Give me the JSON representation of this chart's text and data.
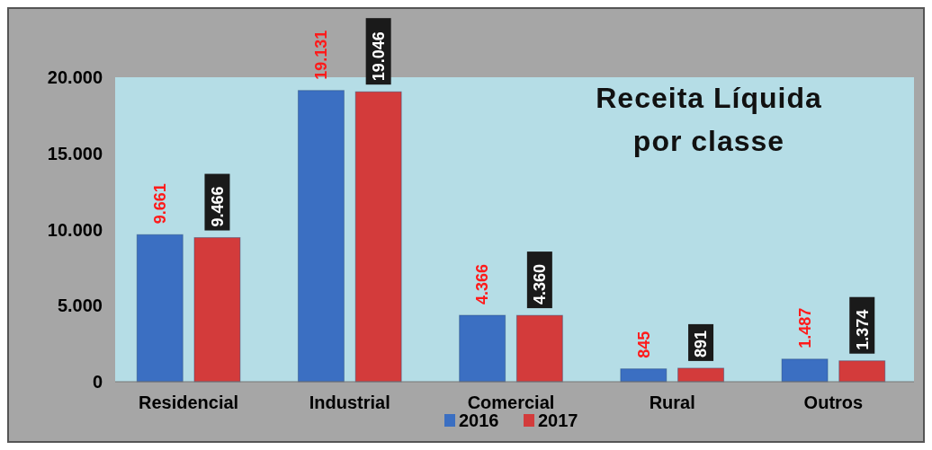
{
  "chart_data": {
    "type": "bar",
    "title": "Receita Líquida por classe",
    "categories": [
      "Residencial",
      "Industrial",
      "Comercial",
      "Rural",
      "Outros"
    ],
    "series": [
      {
        "name": "2016",
        "color": "#3b6fc2",
        "values": [
          9661,
          19131,
          4366,
          845,
          1487
        ],
        "value_labels": [
          "9.661",
          "19.131",
          "4.366",
          "845",
          "1.487"
        ]
      },
      {
        "name": "2017",
        "color": "#d33b3b",
        "values": [
          9466,
          19046,
          4360,
          891,
          1374
        ],
        "value_labels": [
          "9.466",
          "19.046",
          "4.360",
          "891",
          "1.374"
        ]
      }
    ],
    "ylim": [
      0,
      20000
    ],
    "yticks": [
      {
        "value": 0,
        "label": "0"
      },
      {
        "value": 5000,
        "label": "5.000"
      },
      {
        "value": 10000,
        "label": "10.000"
      },
      {
        "value": 15000,
        "label": "15.000"
      },
      {
        "value": 20000,
        "label": "20.000"
      }
    ],
    "grid": false,
    "legend": "bottom"
  }
}
